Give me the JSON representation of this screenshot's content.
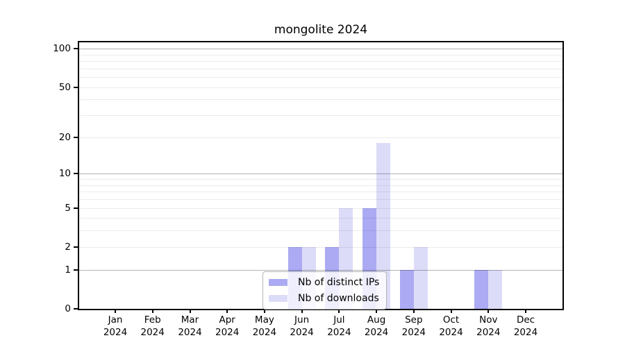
{
  "chart_data": {
    "type": "bar",
    "title": "mongolite 2024",
    "x_categories": [
      {
        "month": "Jan",
        "year": "2024"
      },
      {
        "month": "Feb",
        "year": "2024"
      },
      {
        "month": "Mar",
        "year": "2024"
      },
      {
        "month": "Apr",
        "year": "2024"
      },
      {
        "month": "May",
        "year": "2024"
      },
      {
        "month": "Jun",
        "year": "2024"
      },
      {
        "month": "Jul",
        "year": "2024"
      },
      {
        "month": "Aug",
        "year": "2024"
      },
      {
        "month": "Sep",
        "year": "2024"
      },
      {
        "month": "Oct",
        "year": "2024"
      },
      {
        "month": "Nov",
        "year": "2024"
      },
      {
        "month": "Dec",
        "year": "2024"
      }
    ],
    "series": [
      {
        "name": "Nb of distinct IPs",
        "color": "#abaaf2",
        "values": [
          0,
          0,
          0,
          0,
          0,
          2,
          2,
          5,
          1,
          0,
          1,
          0
        ]
      },
      {
        "name": "Nb of downloads",
        "color": "#dcdcf8",
        "values": [
          0,
          0,
          0,
          0,
          0,
          2,
          5,
          18,
          2,
          0,
          1,
          0
        ]
      }
    ],
    "y_scale": "log1p",
    "ylim": [
      0,
      112
    ],
    "y_ticks": [
      0,
      1,
      2,
      5,
      10,
      20,
      50,
      100
    ],
    "gridlines_major": [
      1,
      10,
      100
    ],
    "gridlines_minor": [
      2,
      3,
      4,
      5,
      6,
      7,
      8,
      9,
      20,
      30,
      40,
      50,
      60,
      70,
      80,
      90
    ],
    "grid": "on",
    "legend_position": "bottom-center",
    "xlabel": "",
    "ylabel": ""
  }
}
